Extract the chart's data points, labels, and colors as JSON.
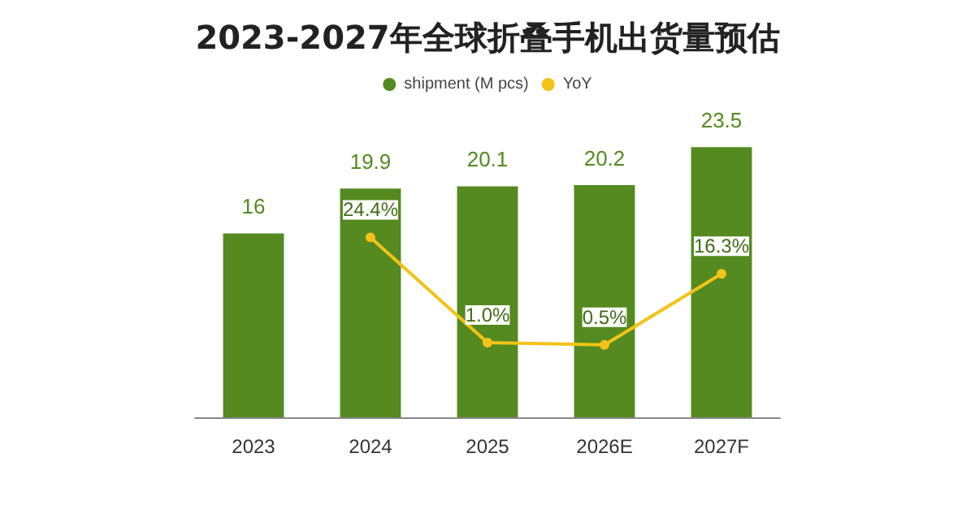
{
  "chart_data": {
    "type": "bar",
    "title": "2023-2027年全球折叠手机出货量预估",
    "categories": [
      "2023",
      "2024",
      "2025",
      "2026E",
      "2027F"
    ],
    "series": [
      {
        "name": "shipment (M pcs)",
        "color": "#548a1f",
        "values": [
          16,
          19.9,
          20.1,
          20.2,
          23.5
        ],
        "value_labels": [
          "16",
          "19.9",
          "20.1",
          "20.2",
          "23.5"
        ]
      },
      {
        "name": "YoY",
        "type": "line",
        "axis": "y2",
        "color": "#f2c318",
        "values": [
          null,
          24.4,
          1.0,
          0.5,
          16.3
        ],
        "value_labels": [
          null,
          "24.4%",
          "1.0%",
          "0.5%",
          "16.3%"
        ]
      }
    ],
    "legend": "top",
    "marker": "circle"
  }
}
